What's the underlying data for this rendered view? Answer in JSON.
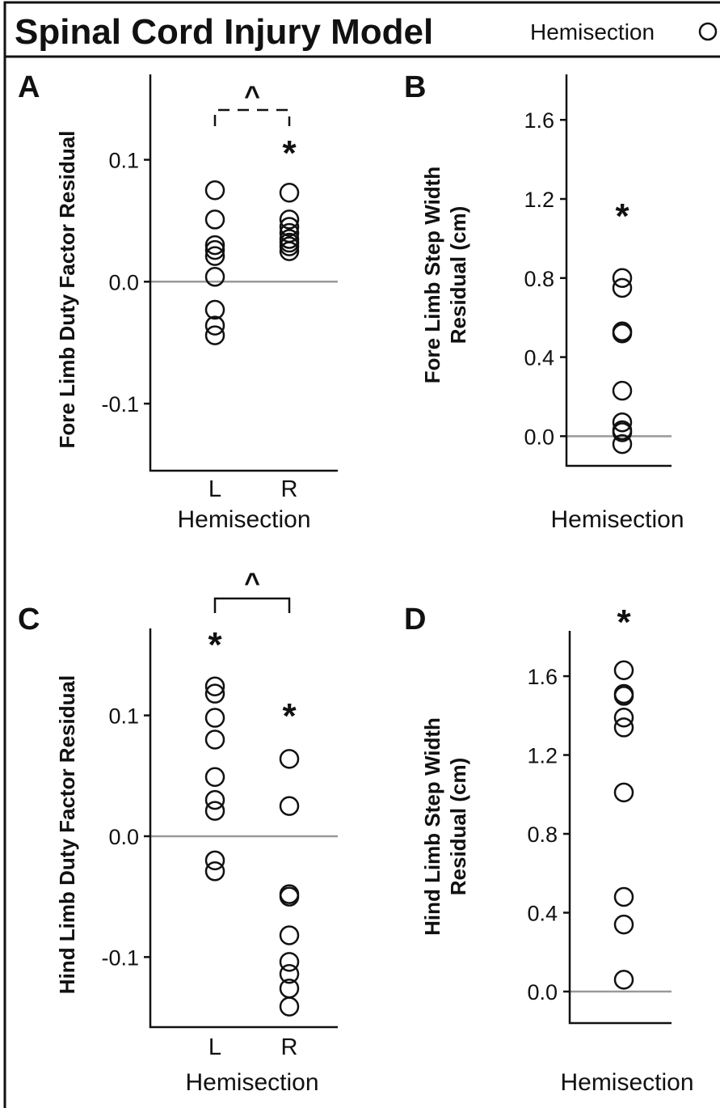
{
  "title": "Spinal Cord Injury Model",
  "legend": {
    "label": "Hemisection",
    "marker": "open-circle"
  },
  "chart_data": [
    {
      "panel": "A",
      "type": "scatter",
      "ylabel": "Fore Limb Duty Factor Residual",
      "xlabel": "Hemisection",
      "categories": [
        "L",
        "R"
      ],
      "ylim": [
        -0.155,
        0.17
      ],
      "yticks": [
        -0.1,
        0.0,
        0.1
      ],
      "ytick_labels": [
        "-0.1",
        "0.0",
        "0.1"
      ],
      "series": [
        {
          "category": "L",
          "values": [
            0.075,
            0.051,
            0.03,
            0.026,
            0.021,
            0.004,
            -0.023,
            -0.036,
            -0.044
          ]
        },
        {
          "category": "R",
          "values": [
            0.073,
            0.051,
            0.045,
            0.04,
            0.035,
            0.032,
            0.029,
            0.025
          ]
        }
      ],
      "significance": [
        {
          "category": "R",
          "text": "*"
        }
      ],
      "bracket": {
        "text": "^",
        "style": "dashed"
      }
    },
    {
      "panel": "B",
      "type": "scatter",
      "ylabel": [
        "Fore Limb Step Width",
        "Residual (cm)"
      ],
      "xlabel": "Hemisection",
      "categories": [
        ""
      ],
      "ylim": [
        -0.15,
        1.83
      ],
      "yticks": [
        0.0,
        0.4,
        0.8,
        1.2,
        1.6
      ],
      "ytick_labels": [
        "0.0",
        "0.4",
        "0.8",
        "1.2",
        "1.6"
      ],
      "series": [
        {
          "category": "",
          "values": [
            0.8,
            0.75,
            0.53,
            0.52,
            0.23,
            0.07,
            0.03,
            0.02,
            -0.04
          ]
        }
      ],
      "significance": [
        {
          "category": "",
          "text": "*"
        }
      ]
    },
    {
      "panel": "C",
      "type": "scatter",
      "ylabel": "Hind Limb Duty Factor Residual",
      "xlabel": "Hemisection",
      "categories": [
        "L",
        "R"
      ],
      "ylim": [
        -0.158,
        0.172
      ],
      "yticks": [
        -0.1,
        0.0,
        0.1
      ],
      "ytick_labels": [
        "-0.1",
        "0.0",
        "0.1"
      ],
      "series": [
        {
          "category": "L",
          "values": [
            0.124,
            0.118,
            0.098,
            0.08,
            0.049,
            0.03,
            0.021,
            -0.02,
            -0.029
          ]
        },
        {
          "category": "R",
          "values": [
            0.064,
            0.025,
            -0.048,
            -0.05,
            -0.082,
            -0.104,
            -0.114,
            -0.126,
            -0.141
          ]
        }
      ],
      "significance": [
        {
          "category": "L",
          "text": "*"
        },
        {
          "category": "R",
          "text": "*"
        }
      ],
      "bracket": {
        "text": "^",
        "style": "solid"
      }
    },
    {
      "panel": "D",
      "type": "scatter",
      "ylabel": [
        "Hind Limb Step Width",
        "Residual (cm)"
      ],
      "xlabel": "Hemisection",
      "categories": [
        ""
      ],
      "ylim": [
        -0.16,
        1.83
      ],
      "yticks": [
        0.0,
        0.4,
        0.8,
        1.2,
        1.6
      ],
      "ytick_labels": [
        "0.0",
        "0.4",
        "0.8",
        "1.2",
        "1.6"
      ],
      "series": [
        {
          "category": "",
          "values": [
            1.63,
            1.51,
            1.5,
            1.39,
            1.34,
            1.01,
            0.48,
            0.34,
            0.06
          ]
        }
      ],
      "significance": [
        {
          "category": "",
          "text": "*"
        }
      ]
    }
  ]
}
